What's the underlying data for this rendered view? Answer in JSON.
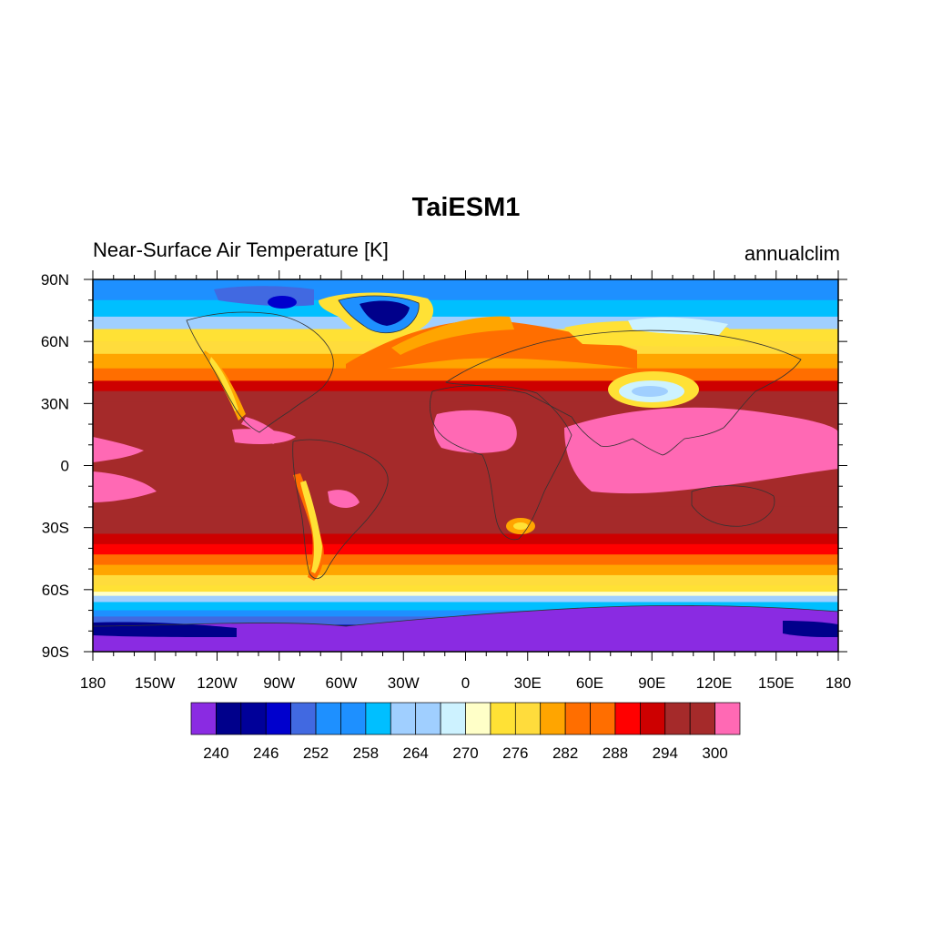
{
  "title": "TaiESM1",
  "left_string": "Near-Surface Air Temperature [K]",
  "right_string": "annualclim",
  "chart_data": {
    "type": "heatmap",
    "projection": "cylindrical-equidistant",
    "variable": "Near-Surface Air Temperature",
    "units": "K",
    "lon_range": [
      -180,
      180
    ],
    "lat_range": [
      -90,
      90
    ],
    "lon_ticks": [
      {
        "value": -180,
        "label": "180"
      },
      {
        "value": -150,
        "label": "150W"
      },
      {
        "value": -120,
        "label": "120W"
      },
      {
        "value": -90,
        "label": "90W"
      },
      {
        "value": -60,
        "label": "60W"
      },
      {
        "value": -30,
        "label": "30W"
      },
      {
        "value": 0,
        "label": "0"
      },
      {
        "value": 30,
        "label": "30E"
      },
      {
        "value": 60,
        "label": "60E"
      },
      {
        "value": 90,
        "label": "90E"
      },
      {
        "value": 120,
        "label": "120E"
      },
      {
        "value": 150,
        "label": "150E"
      },
      {
        "value": 180,
        "label": "180"
      }
    ],
    "lat_ticks": [
      {
        "value": 90,
        "label": "90N"
      },
      {
        "value": 60,
        "label": "60N"
      },
      {
        "value": 30,
        "label": "30N"
      },
      {
        "value": 0,
        "label": "0"
      },
      {
        "value": -30,
        "label": "30S"
      },
      {
        "value": -60,
        "label": "60S"
      },
      {
        "value": -90,
        "label": "90S"
      }
    ],
    "contour_levels": [
      240,
      243,
      246,
      249,
      252,
      255,
      258,
      261,
      264,
      267,
      270,
      273,
      276,
      279,
      282,
      285,
      288,
      291,
      294,
      297,
      300
    ],
    "colorbar_labels": [
      "240",
      "246",
      "252",
      "258",
      "264",
      "270",
      "276",
      "282",
      "288",
      "294",
      "300"
    ],
    "colors": [
      "#8a2be2",
      "#00008b",
      "#000099",
      "#0000cd",
      "#4169e1",
      "#1e90ff",
      "#1e90ff",
      "#00bfff",
      "#a0cfff",
      "#a0cfff",
      "#cdf2ff",
      "#ffffc8",
      "#ffe135",
      "#ffdc3c",
      "#ffa500",
      "#ff6e00",
      "#ff6e00",
      "#ff0000",
      "#cd0000",
      "#a52a2a",
      "#a52a2a",
      "#ff69b4"
    ],
    "zonal_mean_profile": [
      {
        "lat": 90,
        "value": 253
      },
      {
        "lat": 80,
        "value": 256
      },
      {
        "lat": 72,
        "value": 262
      },
      {
        "lat": 66,
        "value": 271
      },
      {
        "lat": 60,
        "value": 276
      },
      {
        "lat": 54,
        "value": 280
      },
      {
        "lat": 47,
        "value": 283
      },
      {
        "lat": 41,
        "value": 289
      },
      {
        "lat": 36,
        "value": 294
      },
      {
        "lat": 31,
        "value": 296
      },
      {
        "lat": 20,
        "value": 298
      },
      {
        "lat": 10,
        "value": 299
      },
      {
        "lat": 0,
        "value": 299
      },
      {
        "lat": -10,
        "value": 299
      },
      {
        "lat": -20,
        "value": 298
      },
      {
        "lat": -28,
        "value": 296
      },
      {
        "lat": -33,
        "value": 294
      },
      {
        "lat": -38,
        "value": 290
      },
      {
        "lat": -43,
        "value": 286
      },
      {
        "lat": -48,
        "value": 283
      },
      {
        "lat": -53,
        "value": 279
      },
      {
        "lat": -58,
        "value": 276
      },
      {
        "lat": -61,
        "value": 272
      },
      {
        "lat": -63,
        "value": 268
      },
      {
        "lat": -66,
        "value": 263
      },
      {
        "lat": -70,
        "value": 258
      },
      {
        "lat": -73,
        "value": 255
      },
      {
        "lat": -77,
        "value": 246
      },
      {
        "lat": -90,
        "value": 240
      }
    ]
  }
}
